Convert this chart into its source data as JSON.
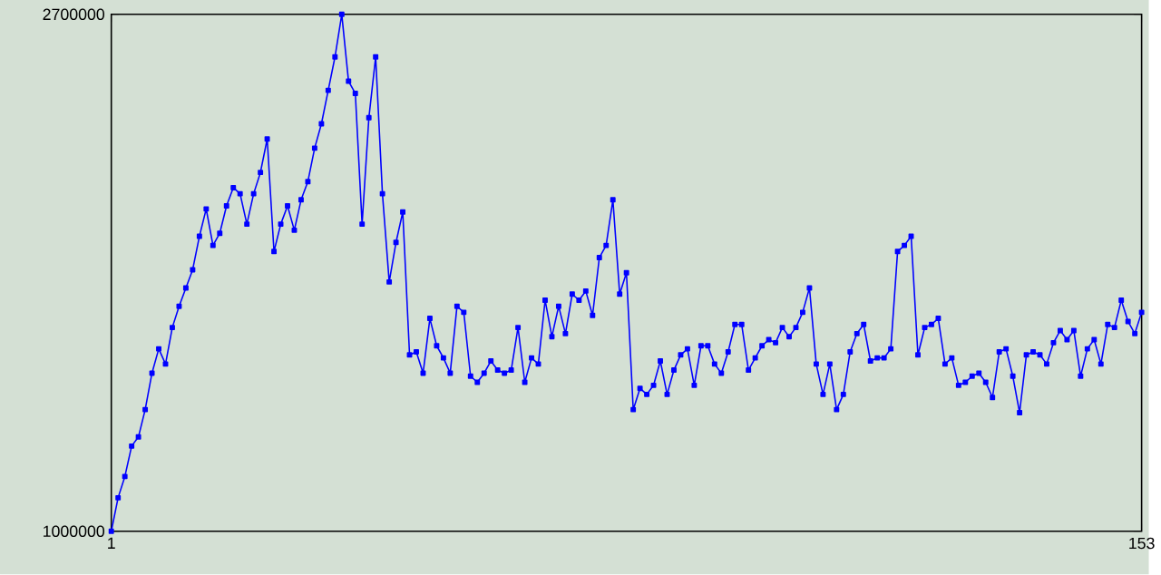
{
  "chart_data": {
    "type": "line",
    "color": "#0000ff",
    "marker": "square",
    "line_style": "solid",
    "xlim": [
      1,
      153
    ],
    "ylim": [
      1000000,
      2700000
    ],
    "xticks": [
      1,
      153
    ],
    "yticks": [
      1000000,
      2700000
    ],
    "x": [
      1,
      2,
      3,
      4,
      5,
      6,
      7,
      8,
      9,
      10,
      11,
      12,
      13,
      14,
      15,
      16,
      17,
      18,
      19,
      20,
      21,
      22,
      23,
      24,
      25,
      26,
      27,
      28,
      29,
      30,
      31,
      32,
      33,
      34,
      35,
      36,
      37,
      38,
      39,
      40,
      41,
      42,
      43,
      44,
      45,
      46,
      47,
      48,
      49,
      50,
      51,
      52,
      53,
      54,
      55,
      56,
      57,
      58,
      59,
      60,
      61,
      62,
      63,
      64,
      65,
      66,
      67,
      68,
      69,
      70,
      71,
      72,
      73,
      74,
      75,
      76,
      77,
      78,
      79,
      80,
      81,
      82,
      83,
      84,
      85,
      86,
      87,
      88,
      89,
      90,
      91,
      92,
      93,
      94,
      95,
      96,
      97,
      98,
      99,
      100,
      101,
      102,
      103,
      104,
      105,
      106,
      107,
      108,
      109,
      110,
      111,
      112,
      113,
      114,
      115,
      116,
      117,
      118,
      119,
      120,
      121,
      122,
      123,
      124,
      125,
      126,
      127,
      128,
      129,
      130,
      131,
      132,
      133,
      134,
      135,
      136,
      137,
      138,
      139,
      140,
      141,
      142,
      143,
      144,
      145,
      146,
      147,
      148,
      149,
      150,
      151,
      152,
      153
    ],
    "values": [
      1000000,
      1110000,
      1180000,
      1280000,
      1310000,
      1400000,
      1520000,
      1600000,
      1550000,
      1670000,
      1740000,
      1800000,
      1860000,
      1970000,
      2060000,
      1940000,
      1980000,
      2070000,
      2130000,
      2110000,
      2010000,
      2110000,
      2180000,
      2290000,
      1920000,
      2010000,
      2070000,
      1990000,
      2090000,
      2150000,
      2260000,
      2340000,
      2450000,
      2560000,
      2700000,
      2480000,
      2440000,
      2010000,
      2360000,
      2560000,
      2110000,
      1820000,
      1950000,
      2050000,
      1580000,
      1590000,
      1520000,
      1700000,
      1610000,
      1570000,
      1520000,
      1740000,
      1720000,
      1510000,
      1490000,
      1520000,
      1560000,
      1530000,
      1520000,
      1530000,
      1670000,
      1490000,
      1570000,
      1550000,
      1760000,
      1640000,
      1740000,
      1650000,
      1780000,
      1760000,
      1790000,
      1710000,
      1900000,
      1940000,
      2090000,
      1780000,
      1850000,
      1400000,
      1470000,
      1450000,
      1480000,
      1560000,
      1450000,
      1530000,
      1580000,
      1600000,
      1480000,
      1610000,
      1610000,
      1550000,
      1520000,
      1590000,
      1680000,
      1680000,
      1530000,
      1570000,
      1610000,
      1630000,
      1620000,
      1670000,
      1640000,
      1670000,
      1720000,
      1800000,
      1550000,
      1450000,
      1550000,
      1400000,
      1450000,
      1590000,
      1650000,
      1680000,
      1560000,
      1570000,
      1570000,
      1600000,
      1920000,
      1940000,
      1970000,
      1580000,
      1670000,
      1680000,
      1700000,
      1550000,
      1570000,
      1480000,
      1490000,
      1510000,
      1520000,
      1490000,
      1440000,
      1590000,
      1600000,
      1510000,
      1390000,
      1580000,
      1590000,
      1580000,
      1550000,
      1620000,
      1660000,
      1630000,
      1660000,
      1510000,
      1600000,
      1630000,
      1550000,
      1680000,
      1670000,
      1760000,
      1690000,
      1650000,
      1720000
    ]
  }
}
